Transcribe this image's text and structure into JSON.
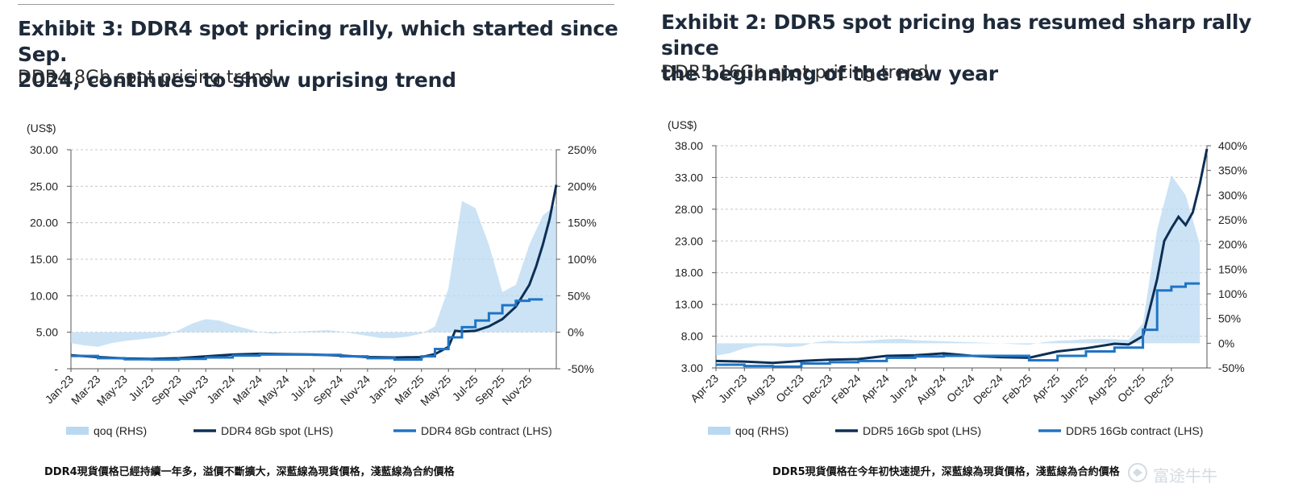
{
  "watermark": "富途牛牛",
  "exhibits": [
    {
      "title_line1": "Exhibit 3: DDR4 spot pricing rally, which started since Sep.",
      "title_line2": "2024, continues to show uprising trend",
      "subtitle": "DDR4 8Gb spot pricing trend",
      "caption": "DDR4現貨價格已經持續一年多，溢價不斷擴大，深藍線為現貨價格，淺藍線為合約價格",
      "chart_data": {
        "type": "line",
        "unit_label": "(US$)",
        "x_tick_labels": [
          "Jan-23",
          "Mar-23",
          "May-23",
          "Jul-23",
          "Sep-23",
          "Nov-23",
          "Jan-24",
          "Mar-24",
          "May-24",
          "Jul-24",
          "Sep-24",
          "Nov-24",
          "Jan-25",
          "Mar-25",
          "May-25",
          "Jul-25",
          "Sep-25",
          "Nov-25"
        ],
        "x_range": [
          "Jan-23",
          "Jan-26"
        ],
        "left_axis": {
          "min": 0,
          "max": 30,
          "ticks": [
            0,
            5,
            10,
            15,
            20,
            25,
            30
          ],
          "tick_labels": [
            "-",
            "5.00",
            "10.00",
            "15.00",
            "20.00",
            "25.00",
            "30.00"
          ]
        },
        "right_axis": {
          "min": -50,
          "max": 250,
          "ticks": [
            -50,
            0,
            50,
            100,
            150,
            200,
            250
          ],
          "tick_labels": [
            "-50%",
            "0%",
            "50%",
            "100%",
            "150%",
            "200%",
            "250%"
          ]
        },
        "grid": true,
        "legend_position": "bottom",
        "series": [
          {
            "name": "qoq (RHS)",
            "axis": "right",
            "kind": "area",
            "color": "#b9d9f2",
            "x": [
              0,
              1,
              2,
              3,
              4,
              5,
              6,
              7,
              8,
              9,
              10,
              11,
              12,
              13,
              14,
              15,
              16,
              17,
              18,
              19,
              20,
              21,
              22,
              23,
              24,
              25,
              26,
              27,
              28,
              29,
              30,
              31,
              32,
              33,
              34,
              35,
              36
            ],
            "values": [
              -15,
              -18,
              -20,
              -15,
              -12,
              -10,
              -8,
              -5,
              3,
              12,
              18,
              16,
              10,
              5,
              0,
              -2,
              0,
              1,
              2,
              3,
              1,
              -2,
              -5,
              -8,
              -8,
              -6,
              -2,
              8,
              60,
              180,
              170,
              120,
              55,
              65,
              120,
              160,
              175
            ]
          },
          {
            "name": "DDR4 8Gb spot (LHS)",
            "axis": "left",
            "kind": "line",
            "color": "#0d2f55",
            "x": [
              0,
              2,
              4,
              6,
              8,
              10,
              12,
              14,
              16,
              18,
              20,
              22,
              24,
              26,
              27,
              28,
              28.5,
              29,
              30,
              31,
              32,
              33,
              34,
              34.5,
              35,
              35.5,
              36
            ],
            "values": [
              1.85,
              1.6,
              1.4,
              1.35,
              1.45,
              1.7,
              1.95,
              2.05,
              2.0,
              1.95,
              1.8,
              1.6,
              1.55,
              1.6,
              2.0,
              3.0,
              5.2,
              5.1,
              5.2,
              5.8,
              6.8,
              8.5,
              11.5,
              14.0,
              17.0,
              20.5,
              25.2
            ]
          },
          {
            "name": "DDR4 8Gb contract (LHS)",
            "axis": "left",
            "kind": "step",
            "color": "#1f74c5",
            "x": [
              0,
              2,
              4,
              6,
              8,
              10,
              12,
              14,
              16,
              18,
              20,
              22,
              24,
              25,
              26,
              27,
              28,
              29,
              30,
              31,
              32,
              33,
              34,
              35
            ],
            "values": [
              1.75,
              1.45,
              1.3,
              1.25,
              1.35,
              1.55,
              1.8,
              1.95,
              1.95,
              1.9,
              1.7,
              1.45,
              1.25,
              1.25,
              1.7,
              2.7,
              4.3,
              5.7,
              6.6,
              7.6,
              8.7,
              9.3,
              9.5,
              9.5
            ]
          }
        ]
      }
    },
    {
      "title_line1": "Exhibit 2: DDR5 spot pricing has resumed sharp rally since",
      "title_line2": "the beginning of the new year",
      "subtitle": "DDR5 16Gb spot pricing trend",
      "caption": "DDR5現貨價格在今年初快速提升，深藍線為現貨價格，淺藍線為合約價格",
      "chart_data": {
        "type": "line",
        "unit_label": "(US$)",
        "x_tick_labels": [
          "Apr-23",
          "Jun-23",
          "Aug-23",
          "Oct-23",
          "Dec-23",
          "Feb-24",
          "Apr-24",
          "Jun-24",
          "Aug-24",
          "Oct-24",
          "Dec-24",
          "Feb-25",
          "Apr-25",
          "Jun-25",
          "Aug-25",
          "Oct-25",
          "Dec-25"
        ],
        "x_range": [
          "Apr-23",
          "Feb-26"
        ],
        "left_axis": {
          "min": 3,
          "max": 38,
          "ticks": [
            3,
            8,
            13,
            18,
            23,
            28,
            33,
            38
          ],
          "tick_labels": [
            "3.00",
            "8.00",
            "13.00",
            "18.00",
            "23.00",
            "28.00",
            "33.00",
            "38.00"
          ]
        },
        "right_axis": {
          "min": -50,
          "max": 400,
          "ticks": [
            -50,
            0,
            50,
            100,
            150,
            200,
            250,
            300,
            350,
            400
          ],
          "tick_labels": [
            "-50%",
            "0%",
            "50%",
            "100%",
            "150%",
            "200%",
            "250%",
            "300%",
            "350%",
            "400%"
          ]
        },
        "grid": true,
        "legend_position": "bottom",
        "series": [
          {
            "name": "qoq (RHS)",
            "axis": "right",
            "kind": "area",
            "color": "#b9d9f2",
            "x": [
              0,
              1,
              2,
              3,
              4,
              5,
              6,
              7,
              8,
              9,
              10,
              11,
              12,
              13,
              14,
              15,
              16,
              17,
              18,
              19,
              20,
              21,
              22,
              23,
              24,
              25,
              26,
              27,
              28,
              29,
              30,
              31,
              32,
              33,
              34
            ],
            "values": [
              -25,
              -20,
              -10,
              -5,
              -5,
              -8,
              -6,
              2,
              5,
              3,
              4,
              6,
              8,
              9,
              6,
              5,
              4,
              3,
              2,
              1,
              0,
              -2,
              -3,
              2,
              5,
              6,
              8,
              9,
              8,
              7,
              40,
              230,
              340,
              300,
              200
            ]
          },
          {
            "name": "DDR5 16Gb spot (LHS)",
            "axis": "left",
            "kind": "line",
            "color": "#0d2f55",
            "x": [
              0,
              2,
              4,
              6,
              8,
              10,
              12,
              14,
              16,
              18,
              20,
              22,
              24,
              26,
              28,
              29,
              30,
              31,
              31.5,
              32,
              32.5,
              33,
              33.5,
              34,
              34.5
            ],
            "values": [
              4.1,
              4.0,
              3.8,
              4.1,
              4.3,
              4.4,
              4.9,
              5.0,
              5.3,
              4.9,
              4.7,
              4.6,
              5.6,
              6.1,
              6.8,
              6.7,
              8.0,
              17.0,
              23.0,
              25.0,
              26.8,
              25.5,
              27.5,
              32.0,
              37.5
            ]
          },
          {
            "name": "DDR5 16Gb contract (LHS)",
            "axis": "left",
            "kind": "step",
            "color": "#1f74c5",
            "x": [
              0,
              2,
              4,
              6,
              8,
              10,
              12,
              14,
              16,
              18,
              20,
              22,
              24,
              26,
              28,
              29,
              30,
              31,
              32,
              33,
              34
            ],
            "values": [
              3.5,
              3.3,
              3.2,
              3.7,
              3.9,
              4.1,
              4.6,
              4.8,
              4.9,
              4.9,
              4.9,
              4.2,
              4.9,
              5.6,
              6.2,
              6.2,
              9.0,
              15.2,
              15.8,
              16.3,
              16.3
            ]
          }
        ]
      }
    }
  ]
}
